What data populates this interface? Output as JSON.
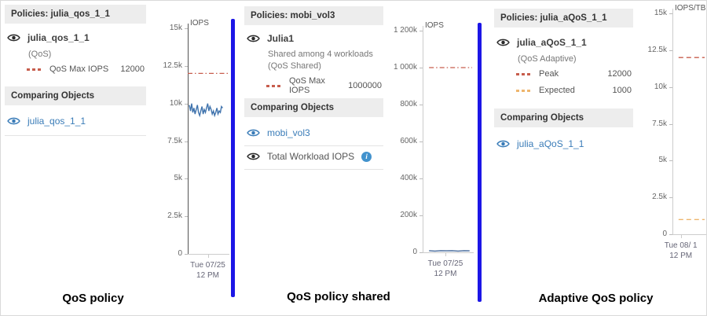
{
  "accent_colors": {
    "divider_blue": "#1c16e6",
    "limit_red": "#c75d4d",
    "expected_orange": "#eeb66e",
    "link_blue": "#3a7cb8",
    "data_line_blue": "#3f73ad",
    "header_gray": "#ededed"
  },
  "panels": [
    {
      "policies_header": "Policies: julia_qos_1_1",
      "primary_name": "julia_qos_1_1",
      "subtitle_lines": [
        "(QoS)"
      ],
      "legend": [
        {
          "label": "QoS Max IOPS",
          "value": "12000",
          "color": "#c75d4d"
        }
      ],
      "comparing_header": "Comparing Objects",
      "comparing": [
        {
          "label": "julia_qos_1_1"
        }
      ],
      "caption": "QoS policy"
    },
    {
      "policies_header": "Policies: mobi_vol3",
      "primary_name": "Julia1",
      "subtitle_lines": [
        "Shared among 4 workloads",
        "(QoS Shared)"
      ],
      "legend": [
        {
          "label": "QoS Max IOPS",
          "value": "1000000",
          "color": "#c75d4d"
        }
      ],
      "comparing_header": "Comparing Objects",
      "comparing": [
        {
          "label": "mobi_vol3"
        },
        {
          "label": "Total Workload IOPS",
          "info": true
        }
      ],
      "caption": "QoS policy shared"
    },
    {
      "policies_header": "Policies: julia_aQoS_1_1",
      "primary_name": "julia_aQoS_1_1",
      "subtitle_lines": [
        "(QoS Adaptive)"
      ],
      "legend": [
        {
          "label": "Peak",
          "value": "12000",
          "color": "#c75d4d"
        },
        {
          "label": "Expected",
          "value": "1000",
          "color": "#eeb66e"
        }
      ],
      "comparing_header": "Comparing Objects",
      "comparing": [
        {
          "label": "julia_aQoS_1_1"
        }
      ],
      "caption": "Adaptive QoS policy"
    }
  ],
  "charts": [
    {
      "type": "line",
      "unit": "IOPS",
      "y_ticks": [
        "15k",
        "12.5k",
        "10k",
        "7.5k",
        "5k",
        "2.5k",
        "0"
      ],
      "y_max": 15000,
      "x_labels": [
        "Tue 07/25",
        "12 PM"
      ],
      "x_center": 0.5,
      "axis_color": "#555555",
      "lines": [
        {
          "kind": "limit",
          "name": "QoS Max IOPS",
          "value": 12000,
          "color": "#c75d4d",
          "dash": "dashdot",
          "x0": 0,
          "x1": 1
        },
        {
          "kind": "data",
          "name": "julia_qos_1_1 IOPS",
          "color": "#3f73ad",
          "x0": 0.04,
          "x1": 0.87,
          "values": [
            9900,
            9500,
            10000,
            9400,
            9700,
            9300,
            9600,
            9900,
            9400,
            9200,
            9500,
            9800,
            9300,
            9600,
            9400,
            9700,
            10000,
            9500,
            9800,
            9600,
            9300,
            9500,
            9200,
            9400,
            9700,
            9300,
            9500,
            9400,
            9800,
            9700
          ]
        }
      ]
    },
    {
      "type": "line",
      "unit": "IOPS",
      "y_ticks": [
        "1 200k",
        "1 000k",
        "800k",
        "600k",
        "400k",
        "200k",
        "0"
      ],
      "y_max": 1200000,
      "x_labels": [
        "Tue 07/25",
        "12 PM"
      ],
      "x_center": 0.46,
      "axis_color": "#cccccc",
      "lines": [
        {
          "kind": "limit",
          "name": "QoS Max IOPS",
          "value": 1000000,
          "color": "#c75d4d",
          "dash": "dashdot",
          "x0": 0.13,
          "x1": 1
        },
        {
          "kind": "data",
          "name": "Total Workload IOPS",
          "color": "#44689a",
          "x0": 0.13,
          "x1": 0.95,
          "values": [
            9000,
            7000,
            9000,
            8000,
            9000,
            7000,
            9000,
            8000
          ]
        }
      ]
    },
    {
      "type": "line",
      "unit": "IOPS/TB",
      "y_ticks": [
        "15k",
        "12.5k",
        "10k",
        "7.5k",
        "5k",
        "2.5k",
        "0"
      ],
      "y_max": 15000,
      "x_labels": [
        "Tue 08/ 1",
        "12 PM"
      ],
      "x_center": 0.26,
      "axis_color": "#cccccc",
      "lines": [
        {
          "kind": "limit",
          "name": "Peak",
          "value": 12000,
          "color": "#c75d4d",
          "dash": "dashed",
          "x0": 0.19,
          "x1": 1
        },
        {
          "kind": "limit",
          "name": "Expected",
          "value": 1000,
          "color": "#eeb66e",
          "dash": "dashed",
          "x0": 0.19,
          "x1": 1
        }
      ]
    }
  ]
}
